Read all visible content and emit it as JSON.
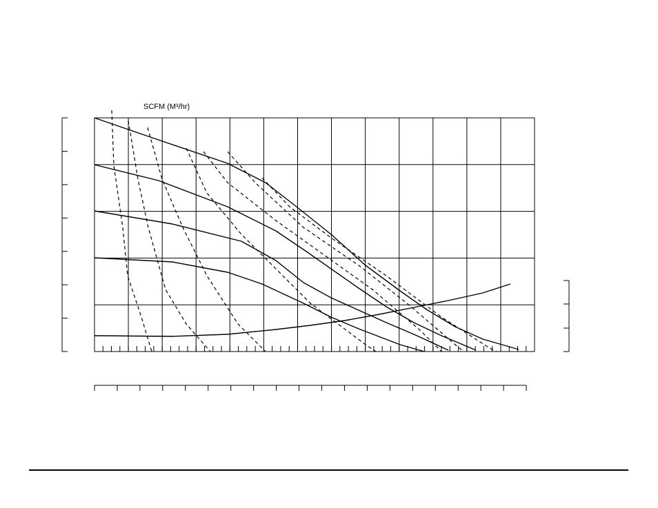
{
  "chart": {
    "flow_label": "SCFM (M³/hr)"
  }
}
